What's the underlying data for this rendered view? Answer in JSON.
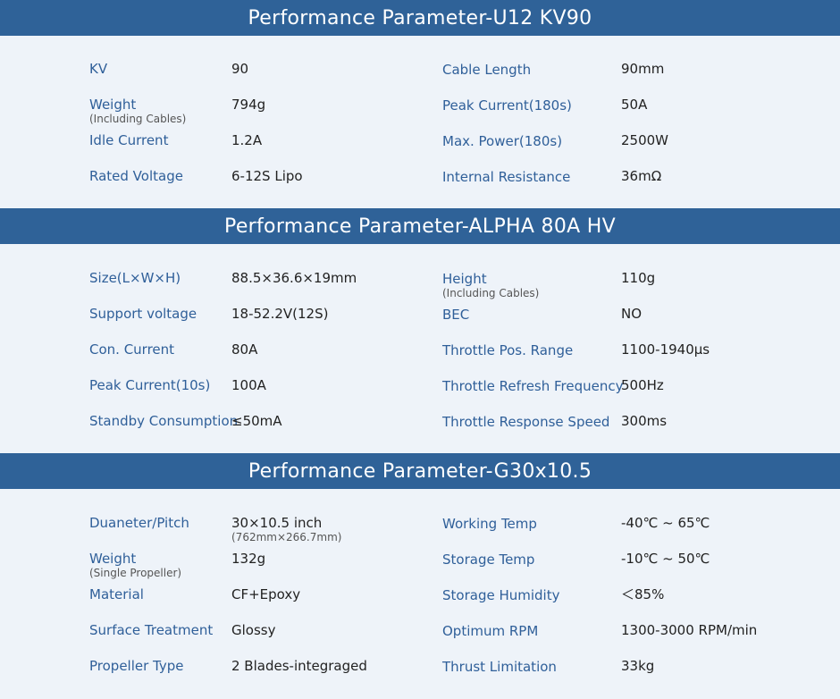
{
  "sections": [
    {
      "title": "Performance Parameter-U12 KV90",
      "left": [
        {
          "label": "KV",
          "value": "90"
        },
        {
          "label": "Weight",
          "sub": "(Including Cables)",
          "value": "794g"
        },
        {
          "label": "Idle Current",
          "value": "1.2A"
        },
        {
          "label": "Rated Voltage",
          "value": "6-12S Lipo"
        }
      ],
      "right": [
        {
          "label": "Cable Length",
          "value": "90mm"
        },
        {
          "label": "Peak Current(180s)",
          "value": "50A"
        },
        {
          "label": "Max. Power(180s)",
          "value": "2500W"
        },
        {
          "label": "Internal Resistance",
          "value": "36mΩ"
        }
      ]
    },
    {
      "title": "Performance Parameter-ALPHA 80A HV",
      "left": [
        {
          "label": "Size(L×W×H)",
          "value": "88.5×36.6×19mm"
        },
        {
          "label": "Support voltage",
          "value": "18-52.2V(12S)"
        },
        {
          "label": "Con. Current",
          "value": "80A"
        },
        {
          "label": "Peak Current(10s)",
          "value": "100A"
        },
        {
          "label": "Standby Consumption",
          "value": "≤50mA"
        }
      ],
      "right": [
        {
          "label": "Height",
          "sub": "(Including Cables)",
          "value": "110g"
        },
        {
          "label": "BEC",
          "value": "NO"
        },
        {
          "label": "Throttle Pos. Range",
          "value": "1100-1940μs"
        },
        {
          "label": "Throttle Refresh Frequency",
          "value": "500Hz"
        },
        {
          "label": "Throttle Response Speed",
          "value": "300ms"
        }
      ]
    },
    {
      "title": "Performance Parameter-G30x10.5",
      "left": [
        {
          "label": "Duaneter/Pitch",
          "value": "30×10.5 inch",
          "value_sub": "(762mm×266.7mm)"
        },
        {
          "label": "Weight",
          "sub": "(Single Propeller)",
          "value": "132g"
        },
        {
          "label": "Material",
          "value": "CF+Epoxy"
        },
        {
          "label": "Surface Treatment",
          "value": "Glossy"
        },
        {
          "label": "Propeller Type",
          "value": "2 Blades-integraged"
        }
      ],
      "right": [
        {
          "label": "Working Temp",
          "value": "-40℃ ~ 65℃"
        },
        {
          "label": "Storage Temp",
          "value": "-10℃ ~ 50℃"
        },
        {
          "label": "Storage Humidity",
          "value": "＜85%"
        },
        {
          "label": "Optimum RPM",
          "value": "1300-3000 RPM/min"
        },
        {
          "label": "Thrust Limitation",
          "value": "33kg"
        }
      ]
    }
  ]
}
